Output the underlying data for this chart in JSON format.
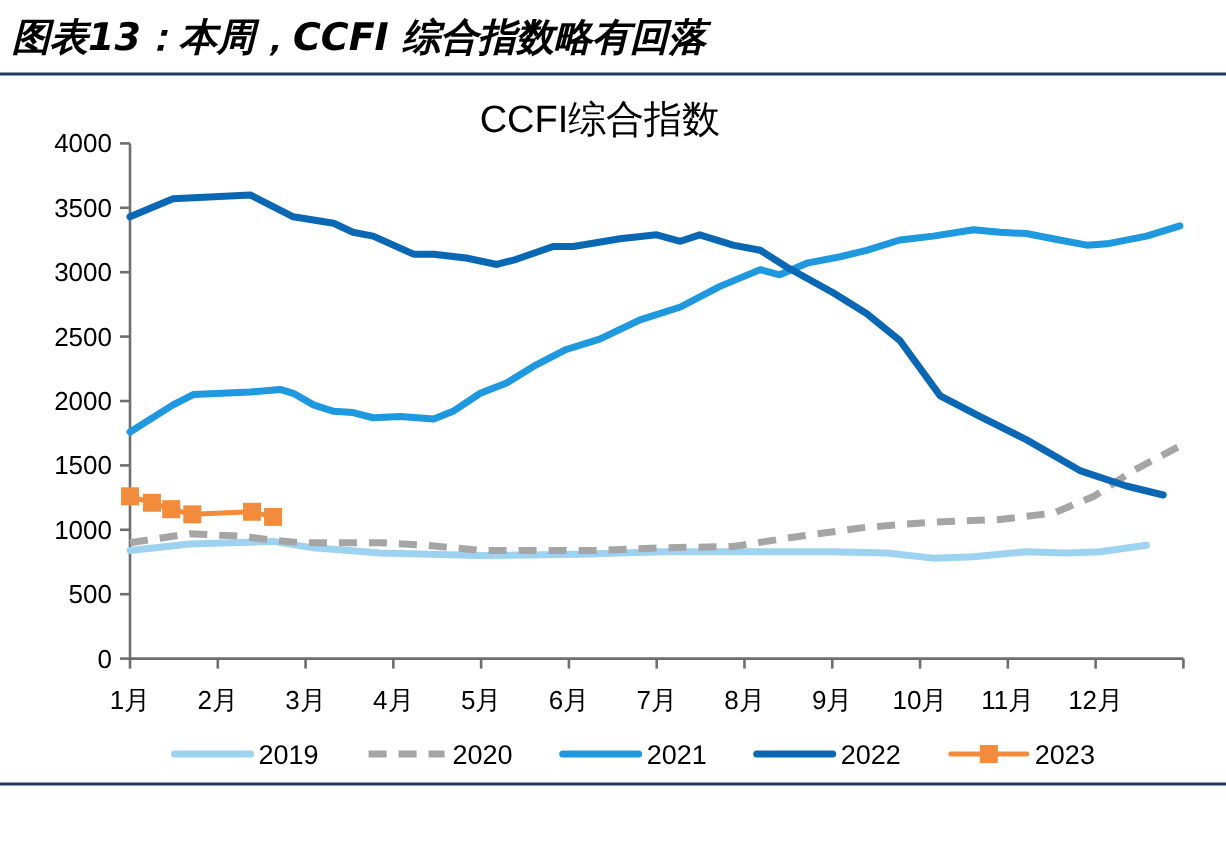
{
  "chart_data": {
    "type": "line",
    "title": "图表13：本周，CCFI 综合指数略有回落",
    "subtitle": "CCFI综合指数",
    "xlim": [
      1,
      13
    ],
    "xticks": [
      {
        "value": 1,
        "label": "1月"
      },
      {
        "value": 2,
        "label": "2月"
      },
      {
        "value": 3,
        "label": "3月"
      },
      {
        "value": 4,
        "label": "4月"
      },
      {
        "value": 5,
        "label": "5月"
      },
      {
        "value": 6,
        "label": "6月"
      },
      {
        "value": 7,
        "label": "7月"
      },
      {
        "value": 8,
        "label": "8月"
      },
      {
        "value": 9,
        "label": "9月"
      },
      {
        "value": 10,
        "label": "10月"
      },
      {
        "value": 11,
        "label": "11月"
      },
      {
        "value": 12,
        "label": "12月"
      },
      {
        "value": 13,
        "label": null
      }
    ],
    "ylim": [
      0,
      4000
    ],
    "yticks": [
      0,
      500,
      1000,
      1500,
      2000,
      2500,
      3000,
      3500,
      4000
    ],
    "legend": "bottom",
    "series": [
      {
        "name": "2019",
        "color": "#9dd3f0",
        "x": [
          1.0,
          1.68,
          2.63,
          3.09,
          3.85,
          4.99,
          6.13,
          7.04,
          7.87,
          9.0,
          9.62,
          10.15,
          10.61,
          11.21,
          11.67,
          12.05,
          12.58
        ],
        "values": [
          840,
          890,
          910,
          860,
          820,
          800,
          810,
          830,
          830,
          830,
          820,
          780,
          790,
          830,
          820,
          830,
          880
        ]
      },
      {
        "name": "2020",
        "color": "#a5a5a5",
        "line_style": "dashed",
        "x": [
          1.0,
          1.68,
          2.25,
          2.63,
          2.94,
          3.85,
          4.38,
          4.99,
          5.75,
          6.35,
          7.04,
          7.87,
          8.63,
          9.39,
          10.15,
          10.91,
          11.52,
          11.98,
          12.43,
          12.96
        ],
        "values": [
          900,
          970,
          950,
          920,
          900,
          900,
          880,
          840,
          840,
          840,
          860,
          870,
          950,
          1020,
          1060,
          1080,
          1130,
          1260,
          1460,
          1650
        ]
      },
      {
        "name": "2021",
        "color": "#1e98de",
        "x": [
          1.0,
          1.49,
          1.72,
          2.37,
          2.71,
          2.86,
          3.09,
          3.32,
          3.54,
          3.77,
          4.08,
          4.46,
          4.68,
          4.99,
          5.29,
          5.6,
          5.97,
          6.35,
          6.81,
          7.27,
          7.72,
          8.18,
          8.4,
          8.71,
          9.09,
          9.39,
          9.77,
          10.15,
          10.61,
          10.91,
          11.21,
          11.59,
          11.9,
          12.13,
          12.58,
          12.96
        ],
        "values": [
          1760,
          1970,
          2050,
          2070,
          2090,
          2060,
          1970,
          1920,
          1910,
          1870,
          1880,
          1860,
          1920,
          2060,
          2140,
          2270,
          2400,
          2480,
          2630,
          2730,
          2890,
          3020,
          2980,
          3070,
          3120,
          3170,
          3250,
          3280,
          3330,
          3310,
          3300,
          3250,
          3210,
          3220,
          3280,
          3360
        ]
      },
      {
        "name": "2022",
        "color": "#0a67b3",
        "x": [
          1.0,
          1.49,
          2.37,
          2.86,
          3.32,
          3.54,
          3.77,
          4.23,
          4.46,
          4.83,
          5.18,
          5.4,
          5.82,
          6.05,
          6.58,
          7.0,
          7.27,
          7.49,
          7.87,
          8.18,
          8.48,
          9.01,
          9.39,
          9.77,
          10.23,
          10.68,
          11.21,
          11.82,
          12.35,
          12.77
        ],
        "values": [
          3430,
          3570,
          3600,
          3430,
          3380,
          3310,
          3280,
          3140,
          3140,
          3110,
          3060,
          3100,
          3200,
          3200,
          3260,
          3290,
          3240,
          3290,
          3210,
          3170,
          3040,
          2840,
          2680,
          2470,
          2040,
          1880,
          1700,
          1460,
          1340,
          1270
        ]
      },
      {
        "name": "2023",
        "color": "#f28c3c",
        "marker": "square",
        "x": [
          1.0,
          1.25,
          1.47,
          1.71,
          2.39,
          2.63
        ],
        "values": [
          1260,
          1210,
          1160,
          1120,
          1140,
          1100
        ]
      }
    ]
  }
}
